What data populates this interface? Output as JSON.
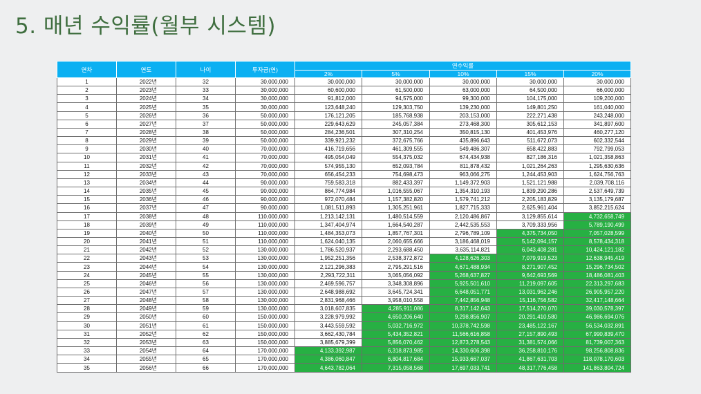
{
  "title": "5. 매년 수익률(월부 시스템)",
  "colors": {
    "header": "#0bb0f2",
    "highlight": "#27b043",
    "title": "#3f6e3f"
  },
  "table": {
    "headers": [
      "연차",
      "연도",
      "나이",
      "투자금(연)"
    ],
    "group_header": "연수익률",
    "rates": [
      "2%",
      "5%",
      "10%",
      "15%",
      "20%"
    ],
    "highlight_threshold": 4000000000,
    "rows": [
      [
        "1",
        "2022년",
        "32",
        "30,000,000",
        "30,000,000",
        "30,000,000",
        "30,000,000",
        "30,000,000",
        "30,000,000"
      ],
      [
        "2",
        "2023년",
        "33",
        "30,000,000",
        "60,600,000",
        "61,500,000",
        "63,000,000",
        "64,500,000",
        "66,000,000"
      ],
      [
        "3",
        "2024년",
        "34",
        "30,000,000",
        "91,812,000",
        "94,575,000",
        "99,300,000",
        "104,175,000",
        "109,200,000"
      ],
      [
        "4",
        "2025년",
        "35",
        "30,000,000",
        "123,648,240",
        "129,303,750",
        "139,230,000",
        "149,801,250",
        "161,040,000"
      ],
      [
        "5",
        "2026년",
        "36",
        "50,000,000",
        "176,121,205",
        "185,768,938",
        "203,153,000",
        "222,271,438",
        "243,248,000"
      ],
      [
        "6",
        "2027년",
        "37",
        "50,000,000",
        "229,643,629",
        "245,057,384",
        "273,468,300",
        "305,612,153",
        "341,897,600"
      ],
      [
        "7",
        "2028년",
        "38",
        "50,000,000",
        "284,236,501",
        "307,310,254",
        "350,815,130",
        "401,453,976",
        "460,277,120"
      ],
      [
        "8",
        "2029년",
        "39",
        "50,000,000",
        "339,921,232",
        "372,675,766",
        "435,896,643",
        "511,672,073",
        "602,332,544"
      ],
      [
        "9",
        "2030년",
        "40",
        "70,000,000",
        "416,719,656",
        "461,309,555",
        "549,486,307",
        "658,422,883",
        "792,799,053"
      ],
      [
        "10",
        "2031년",
        "41",
        "70,000,000",
        "495,054,049",
        "554,375,032",
        "674,434,938",
        "827,186,316",
        "1,021,358,863"
      ],
      [
        "11",
        "2032년",
        "42",
        "70,000,000",
        "574,955,130",
        "652,093,784",
        "811,878,432",
        "1,021,264,263",
        "1,295,630,636"
      ],
      [
        "12",
        "2033년",
        "43",
        "70,000,000",
        "656,454,233",
        "754,698,473",
        "963,066,275",
        "1,244,453,903",
        "1,624,756,763"
      ],
      [
        "13",
        "2034년",
        "44",
        "90,000,000",
        "759,583,318",
        "882,433,397",
        "1,149,372,903",
        "1,521,121,988",
        "2,039,708,116"
      ],
      [
        "14",
        "2035년",
        "45",
        "90,000,000",
        "864,774,984",
        "1,016,555,067",
        "1,354,310,193",
        "1,839,290,286",
        "2,537,649,739"
      ],
      [
        "15",
        "2036년",
        "46",
        "90,000,000",
        "972,070,484",
        "1,157,382,820",
        "1,579,741,212",
        "2,205,183,829",
        "3,135,179,687"
      ],
      [
        "16",
        "2037년",
        "47",
        "90,000,000",
        "1,081,511,893",
        "1,305,251,961",
        "1,827,715,333",
        "2,625,961,404",
        "3,852,215,624"
      ],
      [
        "17",
        "2038년",
        "48",
        "110,000,000",
        "1,213,142,131",
        "1,480,514,559",
        "2,120,486,867",
        "3,129,855,614",
        "4,732,658,749"
      ],
      [
        "18",
        "2039년",
        "49",
        "110,000,000",
        "1,347,404,974",
        "1,664,540,287",
        "2,442,535,553",
        "3,709,333,956",
        "5,789,190,499"
      ],
      [
        "19",
        "2040년",
        "50",
        "110,000,000",
        "1,484,353,073",
        "1,857,767,301",
        "2,796,789,109",
        "4,375,734,050",
        "7,057,028,599"
      ],
      [
        "20",
        "2041년",
        "51",
        "110,000,000",
        "1,624,040,135",
        "2,060,655,666",
        "3,186,468,019",
        "5,142,094,157",
        "8,578,434,318"
      ],
      [
        "21",
        "2042년",
        "52",
        "130,000,000",
        "1,786,520,937",
        "2,293,688,450",
        "3,635,114,821",
        "6,043,408,281",
        "10,424,121,182"
      ],
      [
        "22",
        "2043년",
        "53",
        "130,000,000",
        "1,952,251,356",
        "2,538,372,872",
        "4,128,626,303",
        "7,079,919,523",
        "12,638,945,419"
      ],
      [
        "23",
        "2044년",
        "54",
        "130,000,000",
        "2,121,296,383",
        "2,795,291,516",
        "4,671,488,934",
        "8,271,907,452",
        "15,296,734,502"
      ],
      [
        "24",
        "2045년",
        "55",
        "130,000,000",
        "2,293,722,311",
        "3,065,056,092",
        "5,268,637,827",
        "9,642,693,569",
        "18,486,081,403"
      ],
      [
        "25",
        "2046년",
        "56",
        "130,000,000",
        "2,469,596,757",
        "3,348,308,896",
        "5,925,501,610",
        "11,219,097,605",
        "22,313,297,683"
      ],
      [
        "26",
        "2047년",
        "57",
        "130,000,000",
        "2,648,988,692",
        "3,645,724,341",
        "6,648,051,771",
        "13,031,962,246",
        "26,905,957,220"
      ],
      [
        "27",
        "2048년",
        "58",
        "130,000,000",
        "2,831,968,466",
        "3,958,010,558",
        "7,442,856,948",
        "15,116,756,582",
        "32,417,148,664"
      ],
      [
        "28",
        "2049년",
        "59",
        "130,000,000",
        "3,018,607,835",
        "4,285,911,086",
        "8,317,142,643",
        "17,514,270,070",
        "39,030,578,397"
      ],
      [
        "29",
        "2050년",
        "60",
        "150,000,000",
        "3,228,979,992",
        "4,650,206,640",
        "9,298,856,907",
        "20,291,410,580",
        "46,986,694,076"
      ],
      [
        "30",
        "2051년",
        "61",
        "150,000,000",
        "3,443,559,592",
        "5,032,716,972",
        "10,378,742,598",
        "23,485,122,167",
        "56,534,032,891"
      ],
      [
        "31",
        "2052년",
        "62",
        "150,000,000",
        "3,662,430,784",
        "5,434,352,821",
        "11,566,616,858",
        "27,157,890,493",
        "67,990,839,470"
      ],
      [
        "32",
        "2053년",
        "63",
        "150,000,000",
        "3,885,679,399",
        "5,856,070,462",
        "12,873,278,543",
        "31,381,574,066",
        "81,739,007,363"
      ],
      [
        "33",
        "2054년",
        "64",
        "170,000,000",
        "4,133,392,987",
        "6,318,873,985",
        "14,330,606,398",
        "36,258,810,176",
        "98,256,808,836"
      ],
      [
        "34",
        "2055년",
        "65",
        "170,000,000",
        "4,386,060,847",
        "6,804,817,684",
        "15,933,667,037",
        "41,867,631,703",
        "118,078,170,603"
      ],
      [
        "35",
        "2056년",
        "66",
        "170,000,000",
        "4,643,782,064",
        "7,315,058,568",
        "17,697,033,741",
        "48,317,776,458",
        "141,863,804,724"
      ]
    ]
  }
}
